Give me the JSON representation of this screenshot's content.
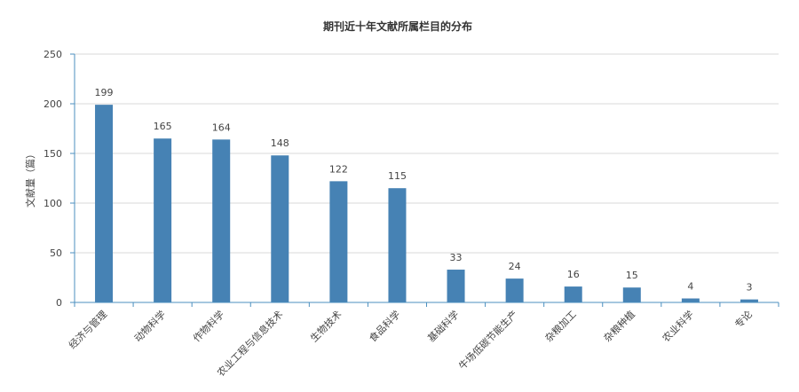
{
  "chart_data": {
    "type": "bar",
    "title": "期刊近十年文献所属栏目的分布",
    "xlabel": "",
    "ylabel": "文献量（篇）",
    "ylim": [
      0,
      250
    ],
    "yticks": [
      0,
      50,
      100,
      150,
      200,
      250
    ],
    "grid": true,
    "categories": [
      "经济与管理",
      "动物科学",
      "作物科学",
      "农业工程与信息技术",
      "生物技术",
      "食品科学",
      "基础科学",
      "牛场低碳节能生产",
      "杂粮加工",
      "杂粮种植",
      "农业科学",
      "专论"
    ],
    "values": [
      199,
      165,
      164,
      148,
      122,
      115,
      33,
      24,
      16,
      15,
      4,
      3
    ],
    "colors": {
      "bar": "#4682b4",
      "axis": "#4b8fbf",
      "grid": "#d9d9d9",
      "text": "#444444"
    }
  }
}
